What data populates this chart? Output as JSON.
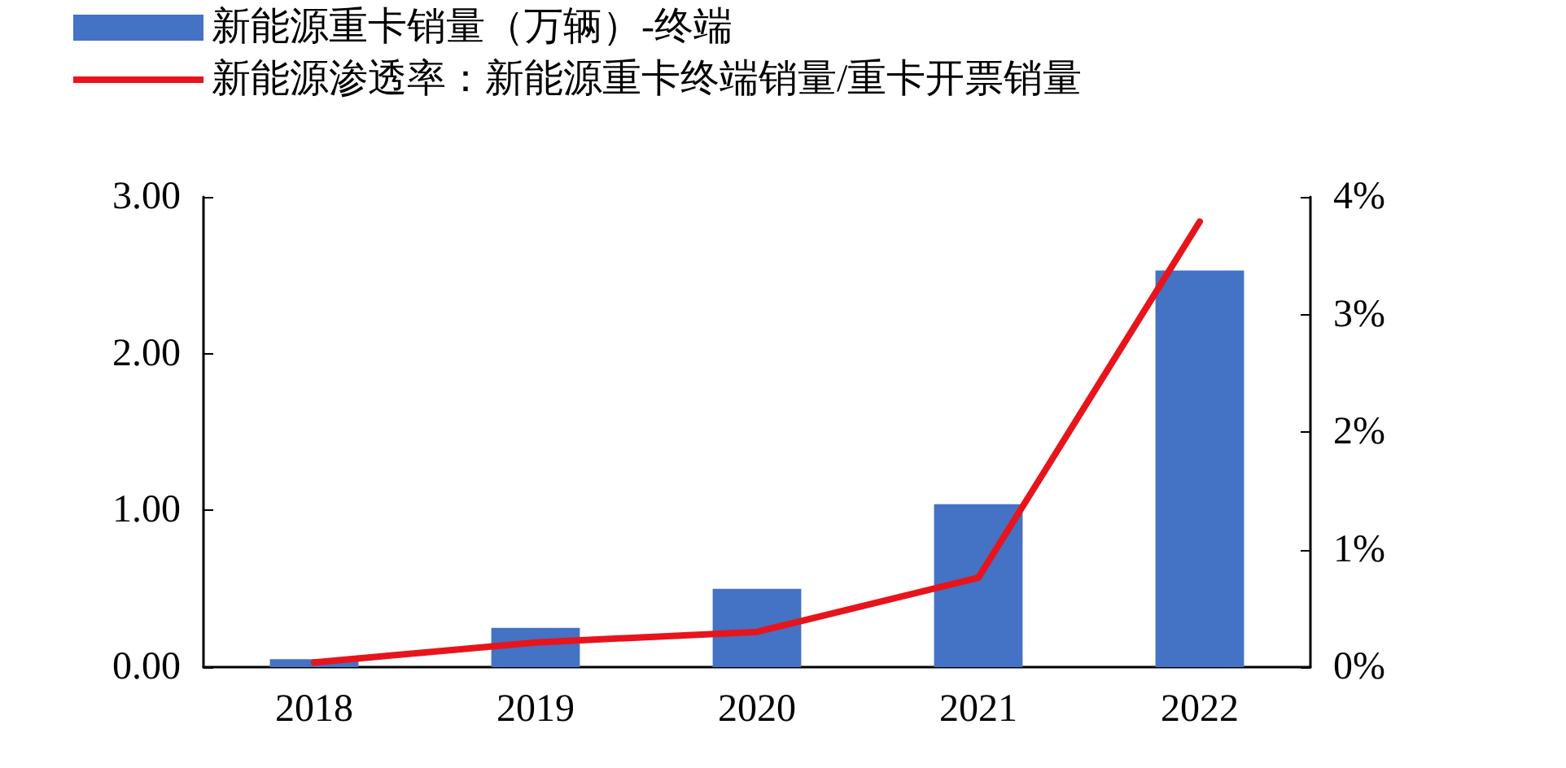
{
  "chart_data": {
    "type": "bar",
    "categories": [
      "2018",
      "2019",
      "2020",
      "2021",
      "2022"
    ],
    "series": [
      {
        "name": "新能源重卡销量（万辆）-终端",
        "color": "#4472c4",
        "values": [
          0.05,
          0.25,
          0.5,
          1.04,
          2.53
        ]
      },
      {
        "name": "新能源渗透率：新能源重卡终端销量/重卡开票销量",
        "type": "line",
        "axis": "y2",
        "color": "#e8141c",
        "values": [
          0.04,
          0.21,
          0.3,
          0.76,
          3.79
        ]
      }
    ],
    "ylim": [
      0,
      3
    ],
    "yticks": [
      {
        "value": 0,
        "label": "0.00"
      },
      {
        "value": 1,
        "label": "1.00"
      },
      {
        "value": 2,
        "label": "2.00"
      },
      {
        "value": 3,
        "label": "3.00"
      }
    ],
    "y2lim": [
      0,
      4
    ],
    "y2ticks": [
      {
        "value": 0,
        "label": "0%"
      },
      {
        "value": 1,
        "label": "1%"
      },
      {
        "value": 2,
        "label": "2%"
      },
      {
        "value": 3,
        "label": "3%"
      },
      {
        "value": 4,
        "label": "4%"
      }
    ],
    "grid": false,
    "legend": "top left",
    "marker": "none",
    "line_style": "solid"
  }
}
